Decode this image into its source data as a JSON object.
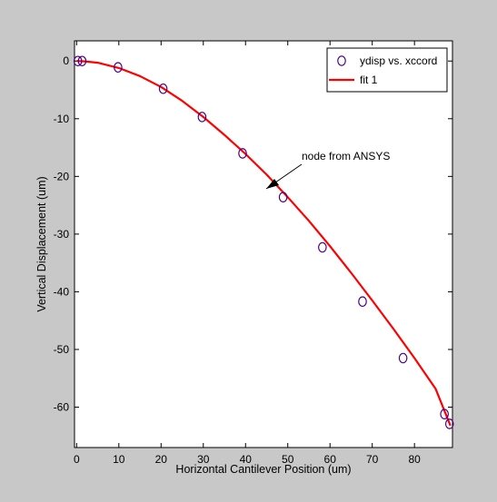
{
  "colors": {
    "figure_bg": "#c8c8c8",
    "axes_bg": "#ffffff",
    "axis": "#000000",
    "data_marker": "#4b0082",
    "fit_line": "#ff0000"
  },
  "chart_data": {
    "type": "scatter",
    "title": "",
    "xlabel": "Horizontal Cantilever Position (um)",
    "ylabel": "Vertical Displacement (um)",
    "xlim": [
      -0.5,
      89
    ],
    "ylim": [
      -67,
      3.5
    ],
    "x_ticks": [
      0,
      10,
      20,
      30,
      40,
      50,
      60,
      70,
      80
    ],
    "y_ticks": [
      0,
      -10,
      -20,
      -30,
      -40,
      -50,
      -60
    ],
    "grid": false,
    "legend_position": "top-right",
    "series": [
      {
        "name": "ydisp vs. xccord",
        "kind": "markers",
        "marker": "circle",
        "x": [
          0.3,
          1.3,
          9.8,
          20.5,
          29.7,
          39.3,
          48.9,
          58.2,
          67.7,
          77.3,
          87.1,
          88.3
        ],
        "y": [
          0.0,
          0.0,
          -1.1,
          -4.8,
          -9.7,
          -16.0,
          -23.6,
          -32.3,
          -41.7,
          -51.5,
          -61.2,
          -62.9
        ]
      },
      {
        "name": "fit 1",
        "kind": "line",
        "x": [
          0,
          2,
          5,
          10,
          15,
          20,
          25,
          30,
          35,
          40,
          45,
          50,
          55,
          60,
          65,
          70,
          75,
          80,
          85,
          88.5
        ],
        "y": [
          0.0,
          -0.05,
          -0.3,
          -1.2,
          -2.6,
          -4.5,
          -6.9,
          -9.7,
          -12.8,
          -16.1,
          -19.7,
          -23.6,
          -27.7,
          -32.1,
          -36.7,
          -41.5,
          -46.4,
          -51.5,
          -56.8,
          -63.2
        ]
      }
    ],
    "annotations": [
      {
        "text": "node from ANSYS",
        "points_to": {
          "x": 48.9,
          "y": -23.6
        }
      }
    ]
  }
}
